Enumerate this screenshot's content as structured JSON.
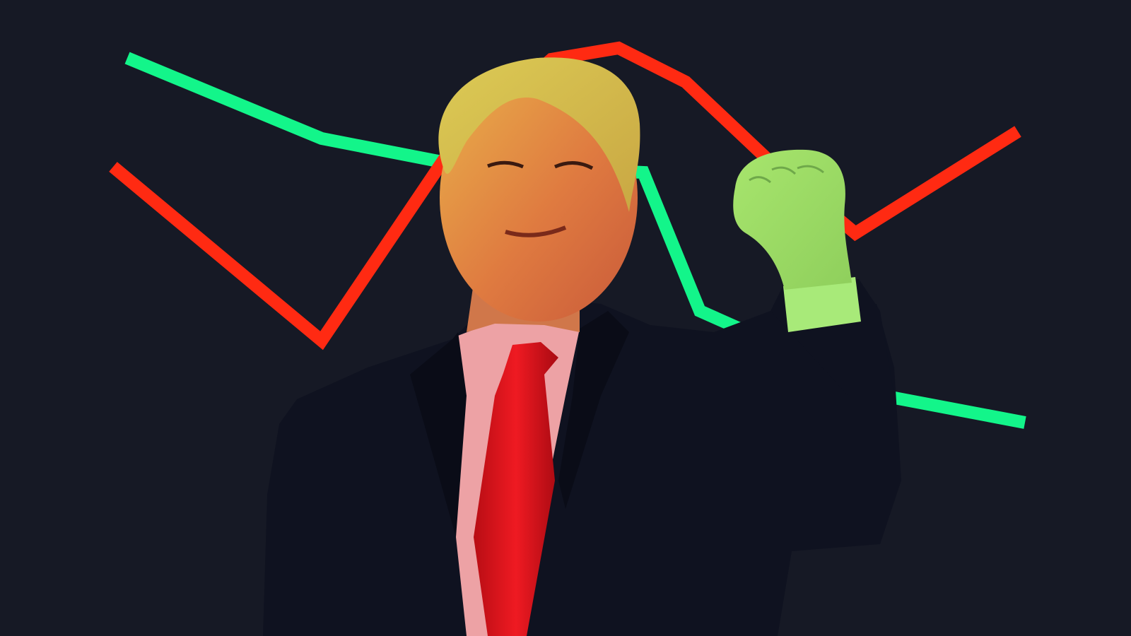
{
  "colors": {
    "background": "#161925",
    "line_up": "#13f58a",
    "line_down": "#ff2a12",
    "suit": "#0f1220",
    "tie": "#e4121b",
    "shirt": "#eda2a5",
    "hair": "#d7c24e",
    "skin": "#e08a45",
    "hand": "#9ee26a"
  },
  "illustration": {
    "subject": "man-in-suit-raised-fist",
    "decoration": "zigzag-trend-lines"
  }
}
